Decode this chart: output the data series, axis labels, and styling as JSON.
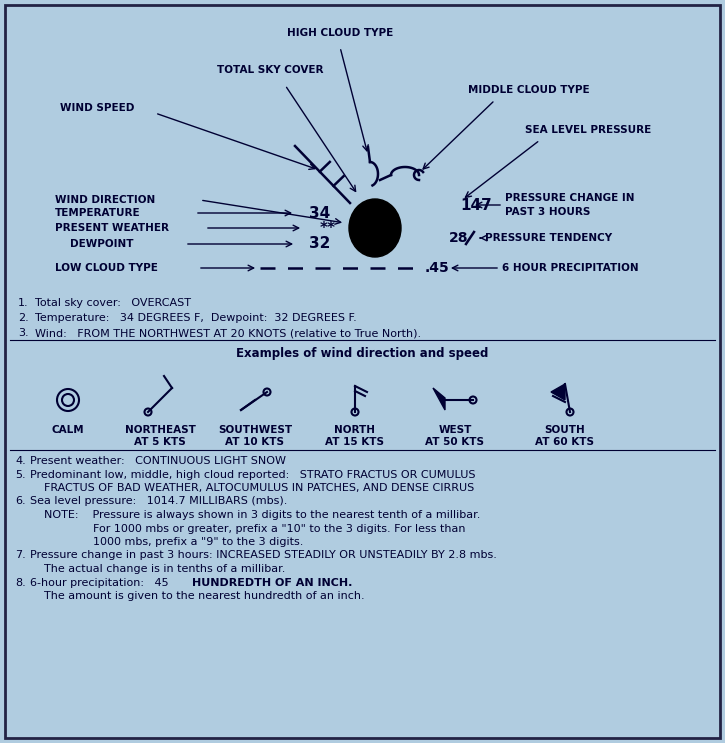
{
  "bg_color": "#b0cce0",
  "border_color": "#222244",
  "text_color": "#000033",
  "diagram_labels": {
    "high_cloud_type": "HIGH CLOUD TYPE",
    "total_sky_cover": "TOTAL SKY COVER",
    "wind_speed": "WIND SPEED",
    "middle_cloud_type": "MIDDLE CLOUD TYPE",
    "sea_level_pressure": "SEA LEVEL PRESSURE",
    "wind_direction": "WIND DIRECTION",
    "temperature": "TEMPERATURE",
    "present_weather": "PRESENT WEATHER",
    "dewpoint": "DEWPOINT",
    "low_cloud_type": "LOW CLOUD TYPE",
    "pressure_change": "PRESSURE CHANGE IN\nPAST 3 HOURS",
    "pressure_tendency": "PRESSURE TENDENCY",
    "precip_6hr": "6 HOUR PRECIPITATION"
  },
  "diagram_values": {
    "pressure": "147",
    "pressure_change": "28",
    "temperature": "34",
    "present_weather": "**",
    "dewpoint": "32",
    "precip": ".45"
  },
  "notes_1_3": [
    [
      "1.",
      "Total sky cover:   OVERCAST"
    ],
    [
      "2.",
      "Temperature:   34 DEGREES F,  Dewpoint:  32 DEGREES F."
    ],
    [
      "3.",
      "Wind:   FROM THE NORTHWEST AT 20 KNOTS (relative to True North)."
    ]
  ],
  "wind_title": "Examples of wind direction and speed",
  "wind_examples": [
    {
      "label": "CALM",
      "subtext": ""
    },
    {
      "label": "NORTHEAST",
      "subtext": "AT 5 KTS"
    },
    {
      "label": "SOUTHWEST",
      "subtext": "AT 10 KTS"
    },
    {
      "label": "NORTH",
      "subtext": "AT 15 KTS"
    },
    {
      "label": "WEST",
      "subtext": "AT 50 KTS"
    },
    {
      "label": "SOUTH",
      "subtext": "AT 60 KTS"
    }
  ]
}
